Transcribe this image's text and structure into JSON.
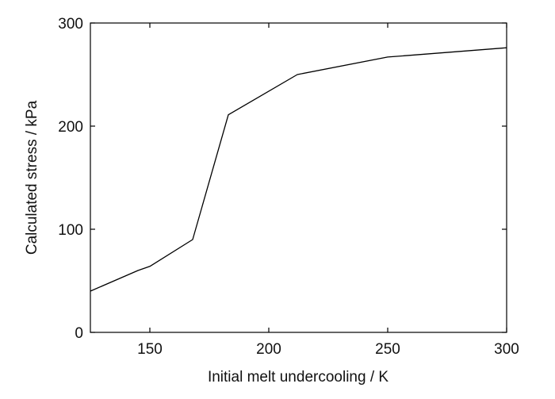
{
  "chart_data": {
    "type": "line",
    "title": "",
    "xlabel": "Initial melt undercooling / K",
    "ylabel": "Calculated stress / kPa",
    "xlim": [
      125,
      300
    ],
    "ylim": [
      0,
      300
    ],
    "x_ticks": [
      150,
      200,
      250,
      300
    ],
    "y_ticks": [
      0,
      100,
      200,
      300
    ],
    "x_tick_labels": [
      "150",
      "200",
      "250",
      "300"
    ],
    "y_tick_labels": [
      "0",
      "100",
      "200",
      "300"
    ],
    "grid": false,
    "legend": "none",
    "line_color": "#000000",
    "series": [
      {
        "x": [
          125,
          145,
          150,
          168,
          183,
          212,
          250,
          300
        ],
        "y": [
          40,
          60,
          64,
          90,
          211,
          250,
          267,
          276
        ]
      }
    ]
  }
}
